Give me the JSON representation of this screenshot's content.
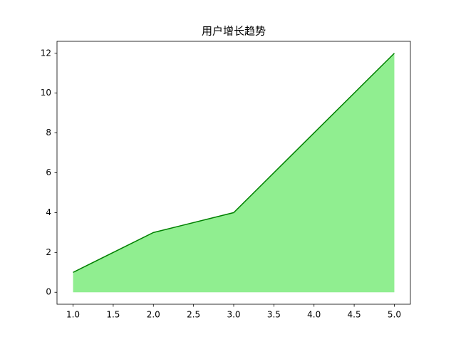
{
  "chart_data": {
    "type": "area",
    "title": "用户增长趋势",
    "x": [
      1,
      2,
      3,
      4,
      5
    ],
    "values": [
      1,
      3,
      4,
      8,
      12
    ],
    "fill_color": "#90ee90",
    "line_color": "#008000",
    "xlim": [
      0.8,
      5.2
    ],
    "ylim": [
      -0.6,
      12.6
    ],
    "xticks": [
      {
        "value": 1,
        "label": "1.0"
      },
      {
        "value": 1.5,
        "label": "1.5"
      },
      {
        "value": 2,
        "label": "2.0"
      },
      {
        "value": 2.5,
        "label": "2.5"
      },
      {
        "value": 3,
        "label": "3.0"
      },
      {
        "value": 3.5,
        "label": "3.5"
      },
      {
        "value": 4,
        "label": "4.0"
      },
      {
        "value": 4.5,
        "label": "4.5"
      },
      {
        "value": 5,
        "label": "5.0"
      }
    ],
    "yticks": [
      0,
      2,
      4,
      6,
      8,
      10,
      12
    ]
  }
}
